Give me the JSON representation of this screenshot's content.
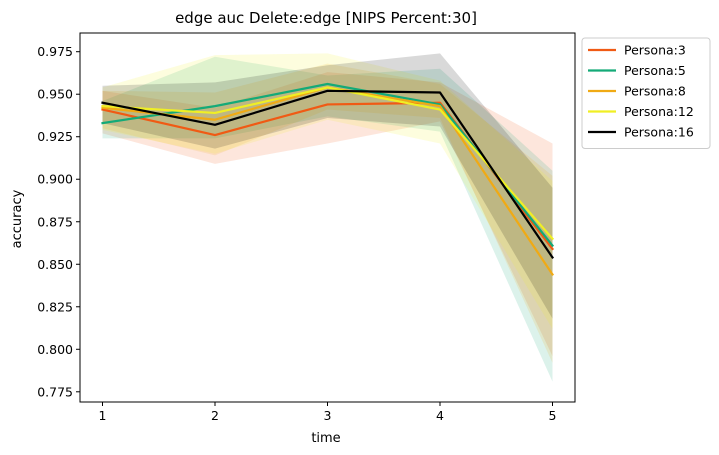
{
  "chart_data": {
    "type": "line",
    "title": "edge auc Delete:edge [NIPS Percent:30]",
    "xlabel": "time",
    "ylabel": "accuracy",
    "x": [
      1,
      2,
      3,
      4,
      5
    ],
    "xlim": [
      0.8,
      5.2
    ],
    "ylim": [
      0.769,
      0.986
    ],
    "xticks": [
      1,
      2,
      3,
      4,
      5
    ],
    "yticks": [
      0.775,
      0.8,
      0.825,
      0.85,
      0.875,
      0.9,
      0.925,
      0.95,
      0.975
    ],
    "ytick_labels": [
      "0.775",
      "0.800",
      "0.825",
      "0.850",
      "0.875",
      "0.900",
      "0.925",
      "0.950",
      "0.975"
    ],
    "grid": false,
    "legend_position": "outside-top-right",
    "series": [
      {
        "name": "Persona:3",
        "color": "#f05a14",
        "values": [
          0.941,
          0.926,
          0.944,
          0.945,
          0.859
        ],
        "lower": [
          0.927,
          0.909,
          0.921,
          0.934,
          0.796
        ],
        "upper": [
          0.952,
          0.942,
          0.963,
          0.957,
          0.921
        ]
      },
      {
        "name": "Persona:5",
        "color": "#14aa78",
        "values": [
          0.933,
          0.943,
          0.956,
          0.944,
          0.861
        ],
        "lower": [
          0.924,
          0.924,
          0.937,
          0.928,
          0.781
        ],
        "upper": [
          0.946,
          0.972,
          0.961,
          0.965,
          0.905
        ]
      },
      {
        "name": "Persona:8",
        "color": "#f0aa14",
        "values": [
          0.942,
          0.935,
          0.954,
          0.943,
          0.844
        ],
        "lower": [
          0.93,
          0.914,
          0.941,
          0.936,
          0.792
        ],
        "upper": [
          0.952,
          0.951,
          0.968,
          0.956,
          0.902
        ]
      },
      {
        "name": "Persona:12",
        "color": "#f0ef24",
        "values": [
          0.943,
          0.939,
          0.954,
          0.941,
          0.865
        ],
        "lower": [
          0.929,
          0.915,
          0.935,
          0.921,
          0.812
        ],
        "upper": [
          0.954,
          0.973,
          0.974,
          0.958,
          0.899
        ]
      },
      {
        "name": "Persona:16",
        "color": "#000000",
        "values": [
          0.945,
          0.932,
          0.952,
          0.951,
          0.854
        ],
        "lower": [
          0.933,
          0.918,
          0.936,
          0.931,
          0.818
        ],
        "upper": [
          0.955,
          0.957,
          0.967,
          0.974,
          0.895
        ]
      }
    ]
  }
}
